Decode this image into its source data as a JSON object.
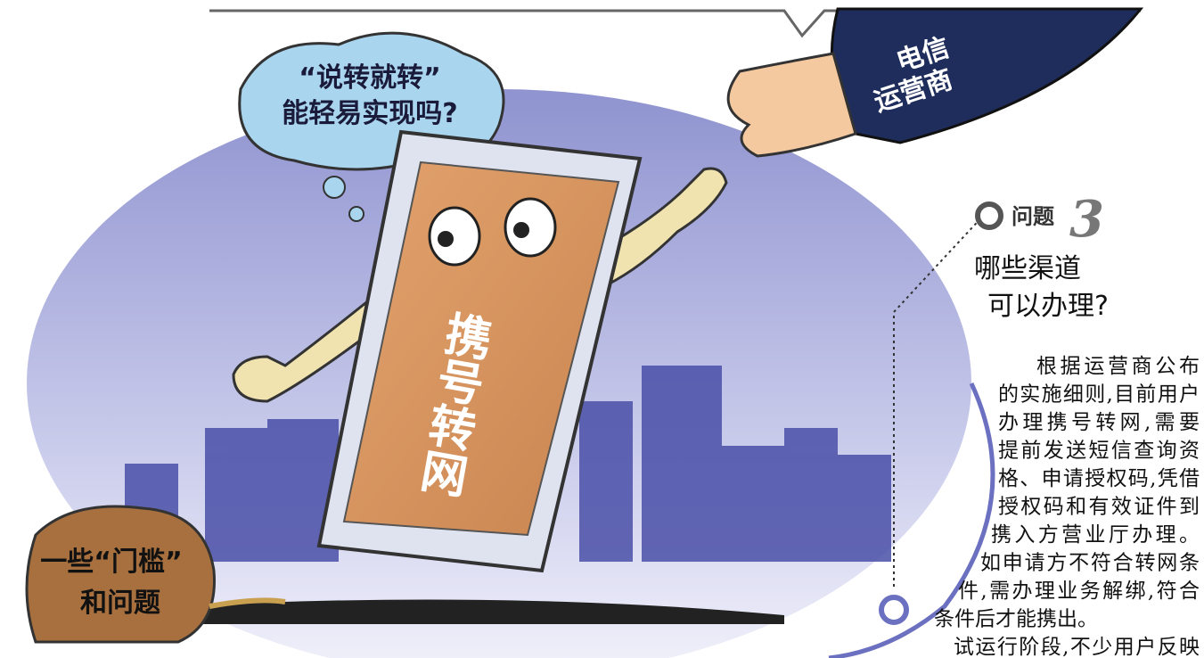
{
  "bubble": {
    "line1": "“说转就转”",
    "line2": "能轻易实现吗?"
  },
  "phone_label": "携号转网",
  "operator": {
    "line1": "电信",
    "line2": "运营商"
  },
  "rock": {
    "line1": "一些“门槛”",
    "line2": "和问题"
  },
  "question": {
    "tag": "问题",
    "number": "3",
    "title_line1": "哪些渠道",
    "title_line2": "可以办理?"
  },
  "body_lines": [
    "根据运营商公布",
    "的实施细则,目前用户",
    "办理携号转网,需要",
    "提前发送短信查询资",
    "格、申请授权码,凭借",
    "授权码和有效证件到",
    "携入方营业厅办理。",
    "如申请方不符合转网条",
    "件,需办理业务解绑,符合",
    "条件后才能携出。",
    "试运行阶段,不少用户反映"
  ]
}
